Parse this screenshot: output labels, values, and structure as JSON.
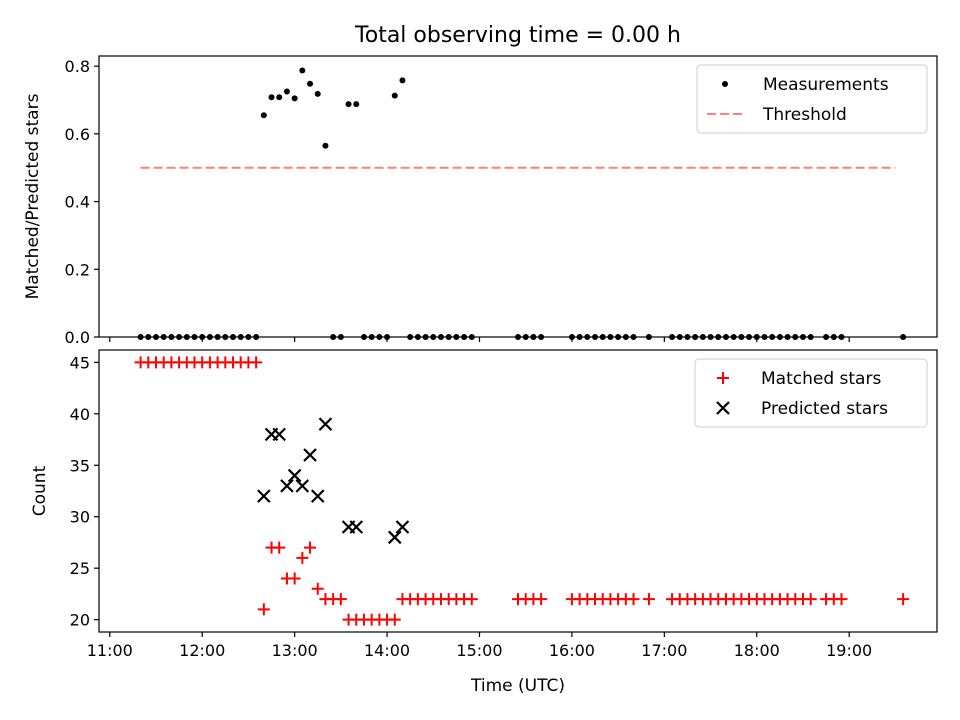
{
  "title": "Total observing time = 0.00 h",
  "xlabel": "Time (UTC)",
  "x_ticks": [
    "11:00",
    "12:00",
    "13:00",
    "14:00",
    "15:00",
    "16:00",
    "17:00",
    "18:00",
    "19:00"
  ],
  "chart_data": [
    {
      "type": "scatter",
      "panel": "top",
      "ylabel": "Matched/Predicted stars",
      "xlim": [
        "10:53",
        "19:57"
      ],
      "ylim": [
        0,
        0.83
      ],
      "yticks": [
        "0.0",
        "0.2",
        "0.4",
        "0.6",
        "0.8"
      ],
      "legend_position": "upper right",
      "series": [
        {
          "name": "Measurements",
          "color": "#000000",
          "marker": "dot",
          "points": [
            [
              "11:20",
              0
            ],
            [
              "11:25",
              0
            ],
            [
              "11:30",
              0
            ],
            [
              "11:35",
              0
            ],
            [
              "11:40",
              0
            ],
            [
              "11:45",
              0
            ],
            [
              "11:50",
              0
            ],
            [
              "11:55",
              0
            ],
            [
              "12:00",
              0
            ],
            [
              "12:05",
              0
            ],
            [
              "12:10",
              0
            ],
            [
              "12:15",
              0
            ],
            [
              "12:20",
              0
            ],
            [
              "12:25",
              0
            ],
            [
              "12:30",
              0
            ],
            [
              "12:35",
              0
            ],
            [
              "12:40",
              0.655
            ],
            [
              "12:45",
              0.708
            ],
            [
              "12:50",
              0.708
            ],
            [
              "12:55",
              0.725
            ],
            [
              "13:00",
              0.705
            ],
            [
              "13:05",
              0.787
            ],
            [
              "13:10",
              0.748
            ],
            [
              "13:15",
              0.718
            ],
            [
              "13:20",
              0.565
            ],
            [
              "13:25",
              0
            ],
            [
              "13:30",
              0
            ],
            [
              "13:35",
              0.688
            ],
            [
              "13:40",
              0.688
            ],
            [
              "13:45",
              0
            ],
            [
              "13:50",
              0
            ],
            [
              "13:55",
              0
            ],
            [
              "14:00",
              0
            ],
            [
              "14:05",
              0.713
            ],
            [
              "14:10",
              0.758
            ],
            [
              "14:15",
              0
            ],
            [
              "14:20",
              0
            ],
            [
              "14:25",
              0
            ],
            [
              "14:30",
              0
            ],
            [
              "14:35",
              0
            ],
            [
              "14:40",
              0
            ],
            [
              "14:45",
              0
            ],
            [
              "14:50",
              0
            ],
            [
              "14:55",
              0
            ],
            [
              "15:25",
              0
            ],
            [
              "15:30",
              0
            ],
            [
              "15:35",
              0
            ],
            [
              "15:40",
              0
            ],
            [
              "16:00",
              0
            ],
            [
              "16:05",
              0
            ],
            [
              "16:10",
              0
            ],
            [
              "16:15",
              0
            ],
            [
              "16:20",
              0
            ],
            [
              "16:25",
              0
            ],
            [
              "16:30",
              0
            ],
            [
              "16:35",
              0
            ],
            [
              "16:40",
              0
            ],
            [
              "16:50",
              0
            ],
            [
              "17:05",
              0
            ],
            [
              "17:10",
              0
            ],
            [
              "17:15",
              0
            ],
            [
              "17:20",
              0
            ],
            [
              "17:25",
              0
            ],
            [
              "17:30",
              0
            ],
            [
              "17:35",
              0
            ],
            [
              "17:40",
              0
            ],
            [
              "17:45",
              0
            ],
            [
              "17:50",
              0
            ],
            [
              "17:55",
              0
            ],
            [
              "18:00",
              0
            ],
            [
              "18:05",
              0
            ],
            [
              "18:10",
              0
            ],
            [
              "18:15",
              0
            ],
            [
              "18:20",
              0
            ],
            [
              "18:25",
              0
            ],
            [
              "18:30",
              0
            ],
            [
              "18:35",
              0
            ],
            [
              "18:45",
              0
            ],
            [
              "18:50",
              0
            ],
            [
              "18:55",
              0
            ],
            [
              "19:35",
              0
            ]
          ]
        },
        {
          "name": "Threshold",
          "color": "#ff7f7f",
          "style": "dashed",
          "points": [
            [
              "11:20",
              0.5
            ],
            [
              "19:30",
              0.5
            ]
          ]
        }
      ]
    },
    {
      "type": "scatter",
      "panel": "bottom",
      "ylabel": "Count",
      "xlim": [
        "10:53",
        "19:57"
      ],
      "ylim": [
        18.8,
        46.2
      ],
      "yticks": [
        "20",
        "25",
        "30",
        "35",
        "40",
        "45"
      ],
      "legend_position": "upper right",
      "series": [
        {
          "name": "Matched stars",
          "color": "#ff0000",
          "marker": "plus",
          "points": [
            [
              "11:20",
              45
            ],
            [
              "11:25",
              45
            ],
            [
              "11:30",
              45
            ],
            [
              "11:35",
              45
            ],
            [
              "11:40",
              45
            ],
            [
              "11:45",
              45
            ],
            [
              "11:50",
              45
            ],
            [
              "11:55",
              45
            ],
            [
              "12:00",
              45
            ],
            [
              "12:05",
              45
            ],
            [
              "12:10",
              45
            ],
            [
              "12:15",
              45
            ],
            [
              "12:20",
              45
            ],
            [
              "12:25",
              45
            ],
            [
              "12:30",
              45
            ],
            [
              "12:35",
              45
            ],
            [
              "12:40",
              21
            ],
            [
              "12:45",
              27
            ],
            [
              "12:50",
              27
            ],
            [
              "12:55",
              24
            ],
            [
              "13:00",
              24
            ],
            [
              "13:05",
              26
            ],
            [
              "13:10",
              27
            ],
            [
              "13:15",
              23
            ],
            [
              "13:20",
              22
            ],
            [
              "13:25",
              22
            ],
            [
              "13:30",
              22
            ],
            [
              "13:35",
              20
            ],
            [
              "13:40",
              20
            ],
            [
              "13:45",
              20
            ],
            [
              "13:50",
              20
            ],
            [
              "13:55",
              20
            ],
            [
              "14:00",
              20
            ],
            [
              "14:05",
              20
            ],
            [
              "14:10",
              22
            ],
            [
              "14:15",
              22
            ],
            [
              "14:20",
              22
            ],
            [
              "14:25",
              22
            ],
            [
              "14:30",
              22
            ],
            [
              "14:35",
              22
            ],
            [
              "14:40",
              22
            ],
            [
              "14:45",
              22
            ],
            [
              "14:50",
              22
            ],
            [
              "14:55",
              22
            ],
            [
              "15:25",
              22
            ],
            [
              "15:30",
              22
            ],
            [
              "15:35",
              22
            ],
            [
              "15:40",
              22
            ],
            [
              "16:00",
              22
            ],
            [
              "16:05",
              22
            ],
            [
              "16:10",
              22
            ],
            [
              "16:15",
              22
            ],
            [
              "16:20",
              22
            ],
            [
              "16:25",
              22
            ],
            [
              "16:30",
              22
            ],
            [
              "16:35",
              22
            ],
            [
              "16:40",
              22
            ],
            [
              "16:50",
              22
            ],
            [
              "17:05",
              22
            ],
            [
              "17:10",
              22
            ],
            [
              "17:15",
              22
            ],
            [
              "17:20",
              22
            ],
            [
              "17:25",
              22
            ],
            [
              "17:30",
              22
            ],
            [
              "17:35",
              22
            ],
            [
              "17:40",
              22
            ],
            [
              "17:45",
              22
            ],
            [
              "17:50",
              22
            ],
            [
              "17:55",
              22
            ],
            [
              "18:00",
              22
            ],
            [
              "18:05",
              22
            ],
            [
              "18:10",
              22
            ],
            [
              "18:15",
              22
            ],
            [
              "18:20",
              22
            ],
            [
              "18:25",
              22
            ],
            [
              "18:30",
              22
            ],
            [
              "18:35",
              22
            ],
            [
              "18:45",
              22
            ],
            [
              "18:50",
              22
            ],
            [
              "18:55",
              22
            ],
            [
              "19:35",
              22
            ]
          ]
        },
        {
          "name": "Predicted stars",
          "color": "#000000",
          "marker": "x",
          "points": [
            [
              "12:40",
              32
            ],
            [
              "12:45",
              38
            ],
            [
              "12:50",
              38
            ],
            [
              "12:55",
              33
            ],
            [
              "13:00",
              34
            ],
            [
              "13:05",
              33
            ],
            [
              "13:10",
              36
            ],
            [
              "13:15",
              32
            ],
            [
              "13:20",
              39
            ],
            [
              "13:35",
              29
            ],
            [
              "13:40",
              29
            ],
            [
              "14:05",
              28
            ],
            [
              "14:10",
              29
            ]
          ]
        }
      ]
    }
  ]
}
